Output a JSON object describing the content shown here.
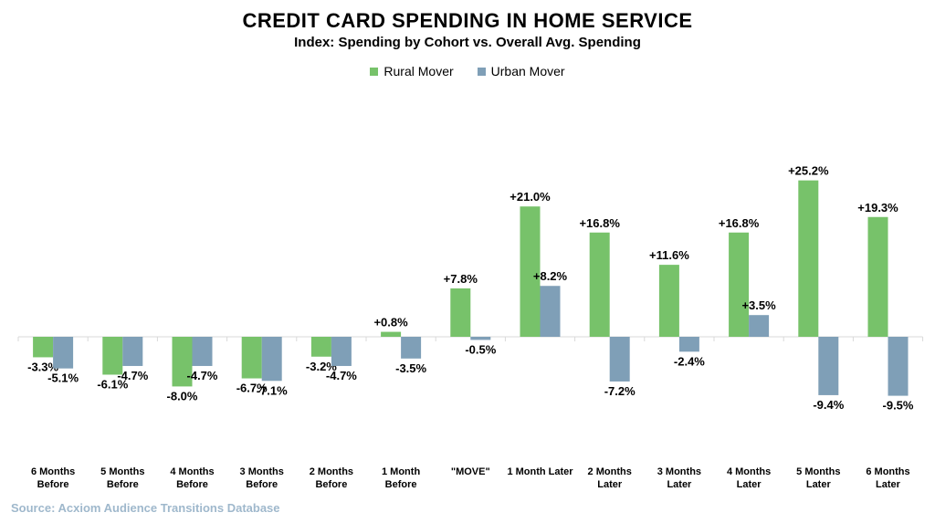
{
  "chart_data": {
    "type": "bar",
    "title": "CREDIT CARD SPENDING IN HOME SERVICE",
    "subtitle": "Index: Spending by Cohort vs. Overall Avg. Spending",
    "legend_position": "top-center",
    "grid": false,
    "categories": [
      [
        "6 Months",
        "Before"
      ],
      [
        "5 Months",
        "Before"
      ],
      [
        "4 Months",
        "Before"
      ],
      [
        "3 Months",
        "Before"
      ],
      [
        "2 Months",
        "Before"
      ],
      [
        "1 Month",
        "Before"
      ],
      [
        "\"MOVE\""
      ],
      [
        "1 Month Later"
      ],
      [
        "2 Months",
        "Later"
      ],
      [
        "3 Months",
        "Later"
      ],
      [
        "4 Months",
        "Later"
      ],
      [
        "5 Months",
        "Later"
      ],
      [
        "6 Months",
        "Later"
      ]
    ],
    "series": [
      {
        "name": "Rural Mover",
        "color": "#77c26a",
        "values": [
          -3.3,
          -6.1,
          -8.0,
          -6.7,
          -3.2,
          0.8,
          7.8,
          21.0,
          16.8,
          11.6,
          16.8,
          25.2,
          19.3
        ],
        "labels": [
          "-3.3%",
          "-6.1%",
          "-8.0%",
          "-6.7%",
          "-3.2%",
          "+0.8%",
          "+7.8%",
          "+21.0%",
          "+16.8%",
          "+11.6%",
          "+16.8%",
          "+25.2%",
          "+19.3%"
        ]
      },
      {
        "name": "Urban Mover",
        "color": "#7f9fb7",
        "values": [
          -5.1,
          -4.7,
          -4.7,
          -7.1,
          -4.7,
          -3.5,
          -0.5,
          8.2,
          -7.2,
          -2.4,
          3.5,
          -9.4,
          -9.5
        ],
        "labels": [
          "-5.1%",
          "-4.7%",
          "-4.7%",
          "-7.1%",
          "-4.7%",
          "-3.5%",
          "-0.5%",
          "+8.2%",
          "-7.2%",
          "-2.4%",
          "+3.5%",
          "-9.4%",
          "-9.5%"
        ]
      }
    ]
  },
  "source": "Source: Acxiom Audience Transitions Database"
}
